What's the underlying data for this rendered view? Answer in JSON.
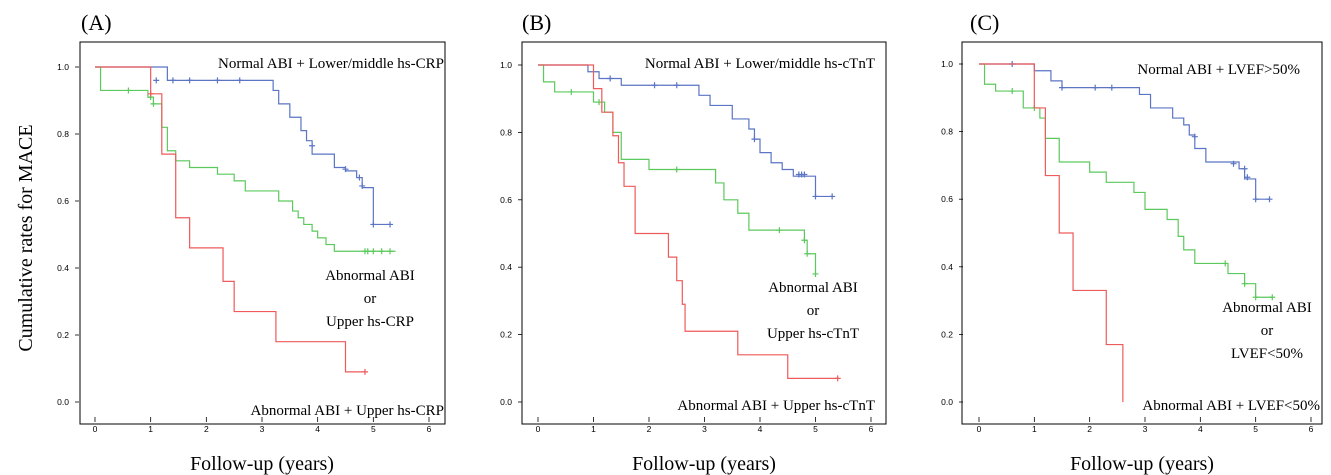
{
  "ylabel": "Cumulative rates for MACE",
  "colors": {
    "blue": "#5b74c4",
    "green": "#5cc95c",
    "red": "#ef5a5a"
  },
  "chart_data": [
    {
      "type": "line",
      "panel_label": "(A)",
      "xlabel": "Follow-up (years)",
      "xlim": [
        0,
        6
      ],
      "ylim": [
        0,
        1
      ],
      "xticks": [
        "0",
        "1",
        "2",
        "3",
        "4",
        "5",
        "6"
      ],
      "yticks": [
        "0.0",
        "0.2",
        "0.4",
        "0.6",
        "0.8",
        "1.0"
      ],
      "annotations": [
        {
          "lines": [
            "Normal ABI + Lower/middle hs-CRP"
          ]
        },
        {
          "lines": [
            "Abnormal ABI",
            "or",
            "Upper hs-CRP"
          ]
        },
        {
          "lines": [
            "Abnormal ABI + Upper hs-CRP"
          ]
        }
      ],
      "series": [
        {
          "color": "blue",
          "steps": [
            [
              0,
              1.0
            ],
            [
              1.3,
              0.96
            ],
            [
              3.2,
              0.93
            ],
            [
              3.3,
              0.89
            ],
            [
              3.5,
              0.85
            ],
            [
              3.7,
              0.81
            ],
            [
              3.8,
              0.78
            ],
            [
              3.9,
              0.74
            ],
            [
              4.3,
              0.7
            ],
            [
              4.5,
              0.69
            ],
            [
              4.7,
              0.67
            ],
            [
              4.8,
              0.64
            ],
            [
              5.0,
              0.53
            ],
            [
              5.3,
              0.53
            ]
          ],
          "censor": [
            [
              1.1,
              0.96
            ],
            [
              1.4,
              0.96
            ],
            [
              1.7,
              0.96
            ],
            [
              2.2,
              0.96
            ],
            [
              2.6,
              0.96
            ],
            [
              3.9,
              0.765
            ],
            [
              4.5,
              0.695
            ],
            [
              4.75,
              0.67
            ],
            [
              4.8,
              0.645
            ],
            [
              5.0,
              0.53
            ],
            [
              5.3,
              0.53
            ]
          ]
        },
        {
          "color": "green",
          "steps": [
            [
              0,
              1.0
            ],
            [
              0.1,
              0.93
            ],
            [
              0.95,
              0.91
            ],
            [
              1.05,
              0.89
            ],
            [
              1.2,
              0.82
            ],
            [
              1.3,
              0.75
            ],
            [
              1.45,
              0.72
            ],
            [
              1.7,
              0.7
            ],
            [
              2.2,
              0.68
            ],
            [
              2.5,
              0.66
            ],
            [
              2.7,
              0.63
            ],
            [
              3.3,
              0.6
            ],
            [
              3.55,
              0.57
            ],
            [
              3.65,
              0.55
            ],
            [
              3.75,
              0.53
            ],
            [
              3.9,
              0.51
            ],
            [
              4.0,
              0.49
            ],
            [
              4.15,
              0.47
            ],
            [
              4.3,
              0.45
            ],
            [
              5.4,
              0.45
            ]
          ],
          "censor": [
            [
              0.6,
              0.93
            ],
            [
              1.0,
              0.91
            ],
            [
              1.05,
              0.89
            ],
            [
              4.85,
              0.45
            ],
            [
              4.9,
              0.45
            ],
            [
              5.0,
              0.45
            ],
            [
              5.15,
              0.45
            ],
            [
              5.3,
              0.45
            ]
          ]
        },
        {
          "color": "red",
          "steps": [
            [
              0,
              1.0
            ],
            [
              1.0,
              0.92
            ],
            [
              1.2,
              0.74
            ],
            [
              1.45,
              0.55
            ],
            [
              1.7,
              0.46
            ],
            [
              2.3,
              0.36
            ],
            [
              2.5,
              0.27
            ],
            [
              3.25,
              0.18
            ],
            [
              4.5,
              0.09
            ],
            [
              4.85,
              0.09
            ]
          ],
          "censor": [
            [
              1.0,
              0.92
            ],
            [
              4.85,
              0.09
            ]
          ]
        }
      ]
    },
    {
      "type": "line",
      "panel_label": "(B)",
      "xlabel": "Follow-up (years)",
      "xlim": [
        0,
        6
      ],
      "ylim": [
        0,
        1
      ],
      "xticks": [
        "0",
        "1",
        "2",
        "3",
        "4",
        "5",
        "6"
      ],
      "yticks": [
        "0.0",
        "0.2",
        "0.4",
        "0.6",
        "0.8",
        "1.0"
      ],
      "annotations": [
        {
          "lines": [
            "Normal ABI + Lower/middle hs-cTnT"
          ]
        },
        {
          "lines": [
            "Abnormal ABI",
            "or",
            "Upper hs-cTnT"
          ]
        },
        {
          "lines": [
            "Abnormal ABI + Upper hs-cTnT"
          ]
        }
      ],
      "series": [
        {
          "color": "blue",
          "steps": [
            [
              0,
              1.0
            ],
            [
              0.9,
              0.98
            ],
            [
              1.1,
              0.96
            ],
            [
              1.5,
              0.94
            ],
            [
              2.9,
              0.91
            ],
            [
              3.1,
              0.88
            ],
            [
              3.5,
              0.84
            ],
            [
              3.8,
              0.81
            ],
            [
              3.9,
              0.78
            ],
            [
              4.0,
              0.74
            ],
            [
              4.2,
              0.71
            ],
            [
              4.4,
              0.69
            ],
            [
              4.6,
              0.67
            ],
            [
              5.0,
              0.61
            ],
            [
              5.3,
              0.61
            ]
          ],
          "censor": [
            [
              1.3,
              0.96
            ],
            [
              2.1,
              0.94
            ],
            [
              2.5,
              0.94
            ],
            [
              3.9,
              0.78
            ],
            [
              4.7,
              0.675
            ],
            [
              4.75,
              0.675
            ],
            [
              4.8,
              0.675
            ],
            [
              5.0,
              0.61
            ],
            [
              5.3,
              0.61
            ]
          ]
        },
        {
          "color": "green",
          "steps": [
            [
              0,
              1.0
            ],
            [
              0.1,
              0.95
            ],
            [
              0.3,
              0.92
            ],
            [
              1.0,
              0.89
            ],
            [
              1.2,
              0.86
            ],
            [
              1.35,
              0.8
            ],
            [
              1.5,
              0.72
            ],
            [
              2.0,
              0.69
            ],
            [
              3.2,
              0.65
            ],
            [
              3.35,
              0.6
            ],
            [
              3.6,
              0.56
            ],
            [
              3.8,
              0.51
            ],
            [
              4.8,
              0.48
            ],
            [
              4.85,
              0.44
            ],
            [
              5.0,
              0.38
            ]
          ],
          "censor": [
            [
              0.6,
              0.92
            ],
            [
              1.1,
              0.89
            ],
            [
              2.5,
              0.69
            ],
            [
              4.35,
              0.51
            ],
            [
              4.8,
              0.48
            ],
            [
              4.85,
              0.44
            ],
            [
              5.0,
              0.38
            ]
          ]
        },
        {
          "color": "red",
          "steps": [
            [
              0,
              1.0
            ],
            [
              1.0,
              0.93
            ],
            [
              1.15,
              0.86
            ],
            [
              1.35,
              0.79
            ],
            [
              1.45,
              0.71
            ],
            [
              1.55,
              0.64
            ],
            [
              1.75,
              0.5
            ],
            [
              2.35,
              0.43
            ],
            [
              2.5,
              0.36
            ],
            [
              2.6,
              0.29
            ],
            [
              2.65,
              0.21
            ],
            [
              3.6,
              0.14
            ],
            [
              4.5,
              0.07
            ],
            [
              5.4,
              0.07
            ]
          ],
          "censor": [
            [
              5.4,
              0.07
            ]
          ]
        }
      ]
    },
    {
      "type": "line",
      "panel_label": "(C)",
      "xlabel": "Follow-up (years)",
      "xlim": [
        0,
        6
      ],
      "ylim": [
        0,
        1
      ],
      "xticks": [
        "0",
        "1",
        "2",
        "3",
        "4",
        "5",
        "6"
      ],
      "yticks": [
        "0.0",
        "0.2",
        "0.4",
        "0.6",
        "0.8",
        "1.0"
      ],
      "annotations": [
        {
          "lines": [
            "Normal ABI + LVEF>50%"
          ]
        },
        {
          "lines": [
            "Abnormal ABI",
            "or",
            "LVEF<50%"
          ]
        },
        {
          "lines": [
            "Abnormal ABI + LVEF<50%"
          ]
        }
      ],
      "series": [
        {
          "color": "blue",
          "steps": [
            [
              0,
              1.0
            ],
            [
              1.0,
              0.98
            ],
            [
              1.3,
              0.95
            ],
            [
              1.5,
              0.93
            ],
            [
              2.9,
              0.91
            ],
            [
              3.1,
              0.87
            ],
            [
              3.5,
              0.84
            ],
            [
              3.7,
              0.82
            ],
            [
              3.8,
              0.79
            ],
            [
              3.9,
              0.75
            ],
            [
              4.1,
              0.71
            ],
            [
              4.7,
              0.69
            ],
            [
              4.8,
              0.66
            ],
            [
              5.0,
              0.6
            ],
            [
              5.25,
              0.6
            ]
          ],
          "censor": [
            [
              0.6,
              1.0
            ],
            [
              1.5,
              0.93
            ],
            [
              2.1,
              0.93
            ],
            [
              2.4,
              0.93
            ],
            [
              3.9,
              0.785
            ],
            [
              4.6,
              0.705
            ],
            [
              4.8,
              0.69
            ],
            [
              4.85,
              0.665
            ],
            [
              5.0,
              0.6
            ],
            [
              5.25,
              0.6
            ]
          ]
        },
        {
          "color": "green",
          "steps": [
            [
              0,
              1.0
            ],
            [
              0.1,
              0.94
            ],
            [
              0.3,
              0.92
            ],
            [
              0.8,
              0.87
            ],
            [
              1.1,
              0.84
            ],
            [
              1.2,
              0.78
            ],
            [
              1.45,
              0.71
            ],
            [
              2.0,
              0.68
            ],
            [
              2.3,
              0.65
            ],
            [
              2.8,
              0.62
            ],
            [
              3.0,
              0.57
            ],
            [
              3.4,
              0.54
            ],
            [
              3.6,
              0.49
            ],
            [
              3.7,
              0.45
            ],
            [
              3.9,
              0.41
            ],
            [
              4.5,
              0.38
            ],
            [
              4.8,
              0.35
            ],
            [
              5.0,
              0.31
            ],
            [
              5.3,
              0.31
            ]
          ],
          "censor": [
            [
              0.6,
              0.92
            ],
            [
              1.0,
              0.87
            ],
            [
              4.45,
              0.41
            ],
            [
              4.8,
              0.35
            ],
            [
              5.0,
              0.31
            ],
            [
              5.3,
              0.31
            ]
          ]
        },
        {
          "color": "red",
          "steps": [
            [
              0,
              1.0
            ],
            [
              1.0,
              0.87
            ],
            [
              1.2,
              0.67
            ],
            [
              1.45,
              0.5
            ],
            [
              1.7,
              0.33
            ],
            [
              2.3,
              0.17
            ],
            [
              2.6,
              0.0
            ]
          ],
          "censor": []
        }
      ]
    }
  ]
}
